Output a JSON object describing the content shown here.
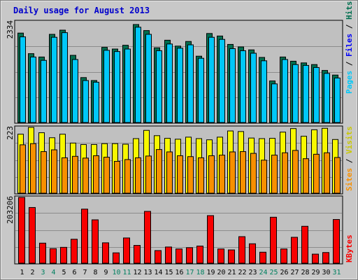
{
  "chart_data": {
    "type": "bar",
    "title": "Daily usage for August 2013",
    "categories": [
      "1",
      "2",
      "3",
      "4",
      "5",
      "6",
      "7",
      "8",
      "9",
      "10",
      "11",
      "12",
      "13",
      "14",
      "15",
      "16",
      "17",
      "18",
      "19",
      "20",
      "21",
      "22",
      "23",
      "24",
      "25",
      "26",
      "27",
      "28",
      "29",
      "30",
      "31"
    ],
    "weekend_days": [
      "3",
      "4",
      "10",
      "11",
      "17",
      "18",
      "24",
      "25",
      "31"
    ],
    "panels": [
      {
        "id": "hits",
        "max_label": "2334",
        "ylim": [
          0,
          2334
        ],
        "series": [
          {
            "name": "Hits",
            "color": "#006f4f",
            "values": [
              2130,
              1640,
              1560,
              2100,
              2200,
              1600,
              1070,
              1000,
              1790,
              1750,
              1840,
              2334,
              2190,
              1780,
              1960,
              1820,
              1930,
              1580,
              2120,
              2060,
              1860,
              1800,
              1730,
              1550,
              990,
              1560,
              1460,
              1420,
              1380,
              1240,
              1130
            ]
          },
          {
            "name": "Files",
            "color": "#00c8f8",
            "values": [
              2040,
              1560,
              1480,
              2030,
              2140,
              1500,
              1000,
              960,
              1720,
              1690,
              1750,
              2270,
              2100,
              1710,
              1870,
              1770,
              1850,
              1530,
              2030,
              1980,
              1760,
              1710,
              1650,
              1470,
              920,
              1500,
              1380,
              1360,
              1310,
              1170,
              1060
            ]
          }
        ],
        "legend": [
          "Pages",
          "Files",
          "Hits"
        ]
      },
      {
        "id": "visits",
        "max_label": "223",
        "ylim": [
          0,
          223
        ],
        "series": [
          {
            "name": "Visits",
            "color": "#f8f800",
            "values": [
              200,
              223,
              205,
              188,
              200,
              170,
              165,
              165,
              168,
              168,
              166,
              185,
              213,
              195,
              186,
              183,
              190,
              185,
              181,
              190,
              211,
              209,
              187,
              185,
              186,
              207,
              219,
              193,
              215,
              220,
              182
            ]
          },
          {
            "name": "Sites",
            "color": "#f89000",
            "values": [
              164,
              168,
              141,
              147,
              120,
              125,
              119,
              127,
              122,
              108,
              114,
              120,
              126,
              148,
              140,
              127,
              124,
              120,
              127,
              129,
              140,
              141,
              135,
              112,
              129,
              137,
              145,
              117,
              132,
              137,
              121
            ]
          }
        ],
        "legend": [
          "Sites",
          "Visits"
        ]
      },
      {
        "id": "kbytes",
        "max_label": "203206",
        "ylim": [
          0,
          203206
        ],
        "series": [
          {
            "name": "KBytes",
            "color": "#f80000",
            "values": [
              203206,
              172000,
              62000,
              45000,
              49000,
              74000,
              167000,
              134000,
              63000,
              32000,
              78000,
              55000,
              160000,
              39000,
              50000,
              44000,
              48000,
              53000,
              147000,
              44000,
              41000,
              82000,
              60000,
              34000,
              142000,
              44000,
              80000,
              114000,
              28000,
              33000,
              135000
            ]
          }
        ],
        "legend": [
          "KBytes"
        ]
      }
    ]
  }
}
